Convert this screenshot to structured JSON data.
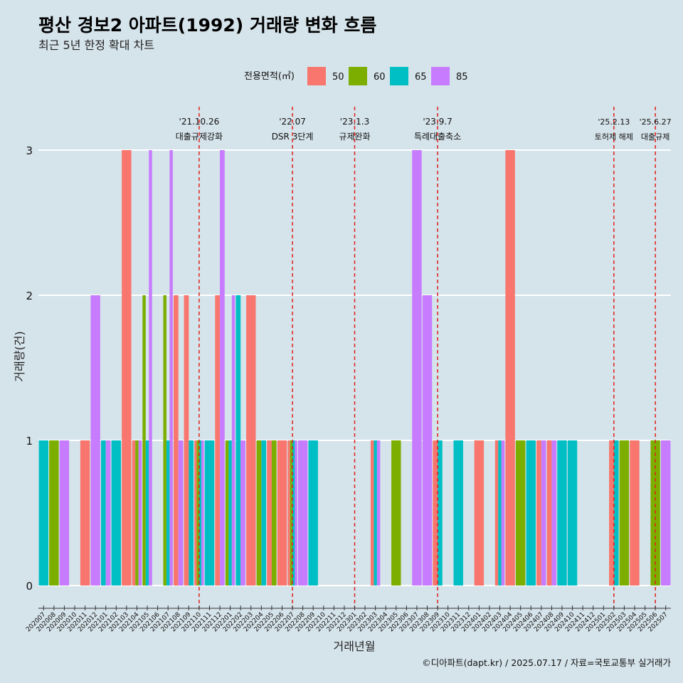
{
  "chart_data": {
    "type": "bar",
    "title": "평산 경보2 아파트(1992) 거래량 변화 흐름",
    "subtitle": "최근 5년 한정 확대 차트",
    "xlabel": "거래년월",
    "ylabel": "거래량(건)",
    "ylim": [
      0,
      3.3
    ],
    "yticks": [
      0,
      1,
      2,
      3
    ],
    "caption": "©디아파트(dapt.kr) / 2025.07.17 / 자료=국토교통부 실거래가",
    "legend": {
      "title": "전용면적(㎡)",
      "position": "top",
      "entries": [
        {
          "name": "50",
          "color": "#F8766D"
        },
        {
          "name": "60",
          "color": "#7CAE00"
        },
        {
          "name": "65",
          "color": "#00BFC4"
        },
        {
          "name": "85",
          "color": "#C77CFF"
        }
      ]
    },
    "categories": [
      "202007",
      "202008",
      "202009",
      "202010",
      "202011",
      "202012",
      "202101",
      "202102",
      "202103",
      "202104",
      "202105",
      "202106",
      "202107",
      "202108",
      "202109",
      "202110",
      "202111",
      "202112",
      "202201",
      "202202",
      "202203",
      "202204",
      "202205",
      "202206",
      "202207",
      "202208",
      "202209",
      "202210",
      "202211",
      "202212",
      "202301",
      "202302",
      "202303",
      "202304",
      "202305",
      "202306",
      "202307",
      "202308",
      "202309",
      "202310",
      "202311",
      "202312",
      "202401",
      "202402",
      "202403",
      "202404",
      "202405",
      "202406",
      "202407",
      "202408",
      "202409",
      "202410",
      "202411",
      "202412",
      "202501",
      "202502",
      "202503",
      "202504",
      "202505",
      "202506",
      "202507"
    ],
    "series": [
      {
        "name": "50",
        "values": [
          0,
          0,
          0,
          0,
          1,
          0,
          0,
          0,
          3,
          1,
          0,
          0,
          0,
          2,
          2,
          1,
          0,
          2,
          0,
          0,
          2,
          0,
          1,
          1,
          1,
          0,
          0,
          0,
          0,
          0,
          0,
          0,
          1,
          0,
          0,
          0,
          0,
          0,
          1,
          0,
          0,
          0,
          1,
          0,
          1,
          3,
          0,
          0,
          1,
          1,
          0,
          0,
          0,
          0,
          0,
          1,
          0,
          1,
          0,
          0,
          0
        ]
      },
      {
        "name": "60",
        "values": [
          0,
          1,
          0,
          0,
          0,
          0,
          0,
          0,
          0,
          1,
          2,
          0,
          2,
          0,
          0,
          1,
          0,
          0,
          1,
          0,
          0,
          1,
          1,
          0,
          1,
          0,
          0,
          0,
          0,
          0,
          0,
          0,
          0,
          0,
          1,
          0,
          0,
          0,
          0,
          0,
          0,
          0,
          0,
          0,
          0,
          0,
          1,
          0,
          0,
          0,
          0,
          0,
          0,
          0,
          0,
          0,
          1,
          0,
          0,
          1,
          0
        ]
      },
      {
        "name": "65",
        "values": [
          1,
          0,
          0,
          0,
          0,
          0,
          1,
          1,
          0,
          0,
          1,
          0,
          1,
          0,
          1,
          1,
          1,
          0,
          1,
          2,
          0,
          1,
          0,
          0,
          1,
          0,
          1,
          0,
          0,
          0,
          0,
          0,
          1,
          0,
          0,
          0,
          0,
          0,
          1,
          0,
          1,
          0,
          0,
          0,
          1,
          0,
          0,
          1,
          0,
          0,
          1,
          1,
          0,
          0,
          0,
          1,
          0,
          0,
          0,
          0,
          0
        ]
      },
      {
        "name": "85",
        "values": [
          0,
          0,
          1,
          0,
          0,
          2,
          1,
          0,
          0,
          1,
          3,
          0,
          3,
          1,
          0,
          1,
          0,
          3,
          2,
          1,
          0,
          0,
          0,
          0,
          1,
          1,
          0,
          0,
          0,
          0,
          0,
          0,
          1,
          0,
          0,
          0,
          3,
          2,
          0,
          0,
          0,
          0,
          0,
          0,
          1,
          0,
          0,
          0,
          1,
          1,
          0,
          0,
          0,
          0,
          0,
          0,
          0,
          0,
          0,
          0,
          1
        ]
      }
    ],
    "annotations": [
      {
        "category": "202110",
        "date_label": "'21.10.26",
        "text": "대출규제강화"
      },
      {
        "category": "202207",
        "date_label": "'22.07",
        "text": "DSR 3단계"
      },
      {
        "category": "202301",
        "date_label": "'23.1.3",
        "text": "규제완화"
      },
      {
        "category": "202309",
        "date_label": "'23.9.7",
        "text": "특례대출축소"
      },
      {
        "category": "202502",
        "date_label": "'25.2.13",
        "text": "토허제 해제"
      },
      {
        "category": "202506",
        "date_label": "'25.6.27",
        "text": "대출규제"
      }
    ]
  }
}
